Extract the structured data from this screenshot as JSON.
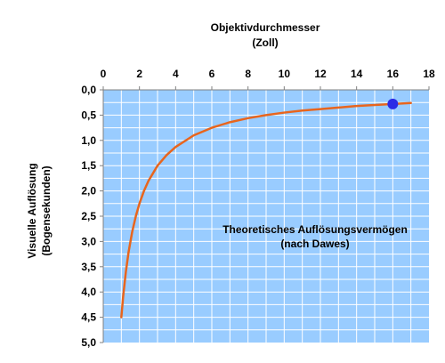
{
  "chart_data": {
    "type": "line",
    "title": "Objektivdurchmesser",
    "title_unit": "(Zoll)",
    "ylabel": "Visuelle Auflösung",
    "ylabel_unit": "(Bogensekunden)",
    "annotation": "Theoretisches  Auflösungsvermögen",
    "annotation_sub": "(nach Dawes)",
    "x_axis_position": "top",
    "y_axis_inverted": true,
    "xlim": [
      0,
      18
    ],
    "ylim": [
      0,
      5
    ],
    "xticks": [
      "0",
      "2",
      "4",
      "6",
      "8",
      "10",
      "12",
      "14",
      "16",
      "18"
    ],
    "yticks": [
      "0,0",
      "0,5",
      "1,0",
      "1,5",
      "2,0",
      "2,5",
      "3,0",
      "3,5",
      "4,0",
      "4,5",
      "5,0"
    ],
    "grid": true,
    "series": [
      {
        "x": [
          1.0,
          1.1,
          1.25,
          1.4,
          1.6,
          1.8,
          2.0,
          2.25,
          2.5,
          3.0,
          3.5,
          4.0,
          5.0,
          6.0,
          7.0,
          8.0,
          9.0,
          10.0,
          11.0,
          12.0,
          13.0,
          14.0,
          15.0,
          16.0,
          17.0
        ],
        "y": [
          4.5,
          4.09,
          3.6,
          3.21,
          2.81,
          2.5,
          2.25,
          2.0,
          1.8,
          1.5,
          1.29,
          1.13,
          0.9,
          0.75,
          0.64,
          0.56,
          0.5,
          0.45,
          0.41,
          0.38,
          0.35,
          0.32,
          0.3,
          0.28,
          0.26
        ],
        "color": "#e8651d"
      }
    ],
    "highlight_point": {
      "x": 16,
      "y": 0.28,
      "color": "#2c2ce6"
    },
    "colors": {
      "plot_background": "#99ccff",
      "grid": "#ffffff",
      "axis": "#808080"
    }
  }
}
